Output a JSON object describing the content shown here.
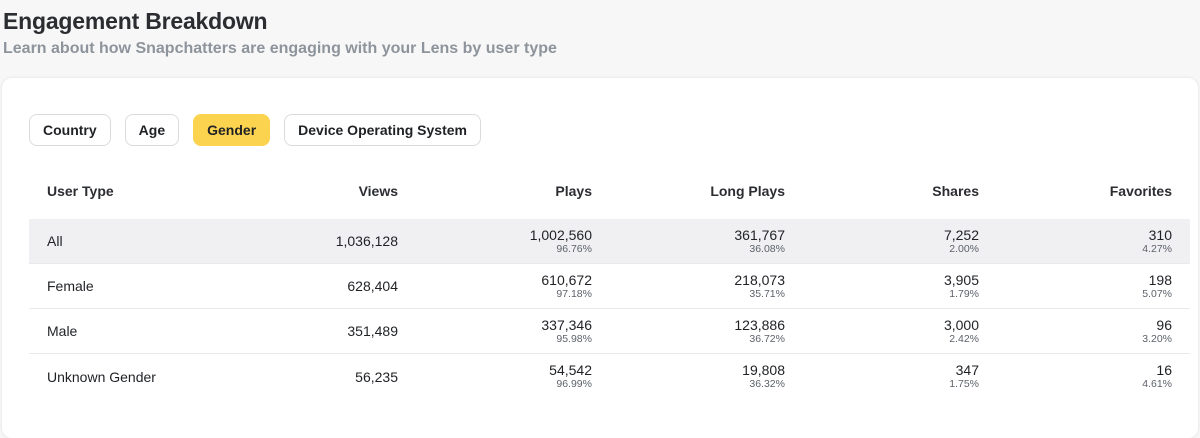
{
  "header": {
    "title": "Engagement Breakdown",
    "subtitle": "Learn about how Snapchatters are engaging with your Lens by user type"
  },
  "filters": [
    {
      "label": "Country",
      "active": false
    },
    {
      "label": "Age",
      "active": false
    },
    {
      "label": "Gender",
      "active": true
    },
    {
      "label": "Device Operating System",
      "active": false
    }
  ],
  "colors": {
    "active_filter": "#fcd34f",
    "highlight_row": "#f0f0f2"
  },
  "table": {
    "columns": [
      "User Type",
      "Views",
      "Plays",
      "Long Plays",
      "Shares",
      "Favorites"
    ],
    "rows": [
      {
        "user_type": "All",
        "highlighted": true,
        "views": "1,036,128",
        "plays": {
          "value": "1,002,560",
          "pct": "96.76%"
        },
        "long_plays": {
          "value": "361,767",
          "pct": "36.08%"
        },
        "shares": {
          "value": "7,252",
          "pct": "2.00%"
        },
        "favorites": {
          "value": "310",
          "pct": "4.27%"
        }
      },
      {
        "user_type": "Female",
        "highlighted": false,
        "views": "628,404",
        "plays": {
          "value": "610,672",
          "pct": "97.18%"
        },
        "long_plays": {
          "value": "218,073",
          "pct": "35.71%"
        },
        "shares": {
          "value": "3,905",
          "pct": "1.79%"
        },
        "favorites": {
          "value": "198",
          "pct": "5.07%"
        }
      },
      {
        "user_type": "Male",
        "highlighted": false,
        "views": "351,489",
        "plays": {
          "value": "337,346",
          "pct": "95.98%"
        },
        "long_plays": {
          "value": "123,886",
          "pct": "36.72%"
        },
        "shares": {
          "value": "3,000",
          "pct": "2.42%"
        },
        "favorites": {
          "value": "96",
          "pct": "3.20%"
        }
      },
      {
        "user_type": "Unknown Gender",
        "highlighted": false,
        "views": "56,235",
        "plays": {
          "value": "54,542",
          "pct": "96.99%"
        },
        "long_plays": {
          "value": "19,808",
          "pct": "36.32%"
        },
        "shares": {
          "value": "347",
          "pct": "1.75%"
        },
        "favorites": {
          "value": "16",
          "pct": "4.61%"
        }
      }
    ]
  }
}
